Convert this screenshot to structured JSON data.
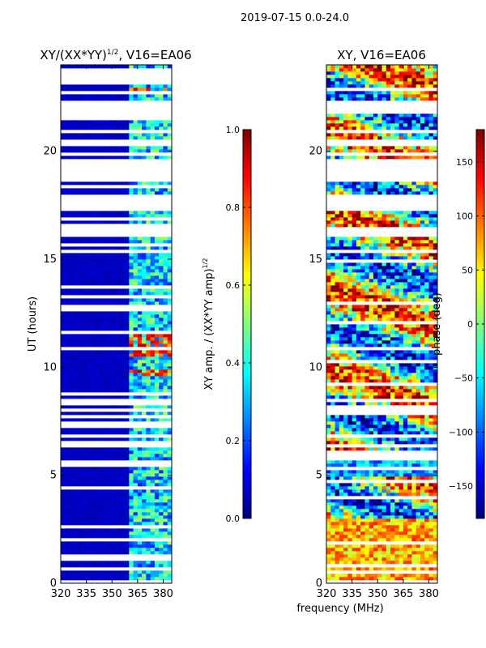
{
  "figure": {
    "suptitle": "2019-07-15 0.0-24.0",
    "xlabel_shared": "frequency (MHz)"
  },
  "colors": {
    "jet_stops": [
      "#00007f",
      "#0000ff",
      "#007fff",
      "#00ffff",
      "#7fff7f",
      "#ffff00",
      "#ff7f00",
      "#ff0000",
      "#7f0000"
    ],
    "background": "#ffffff",
    "gap": "#ffffff"
  },
  "chart_data": [
    {
      "type": "heatmap",
      "title": "XY/(XX*YY)¹ᐟ², V16=EA06",
      "title_main": "XY/(XX*YY)",
      "title_exp": "1/2",
      "title_tail": ", V16=EA06",
      "xlabel": "",
      "ylabel": "UT (hours)",
      "xlim": [
        320,
        385
      ],
      "ylim": [
        0,
        24
      ],
      "xticks": [
        320,
        335,
        350,
        365,
        380
      ],
      "xtick_labels": [
        "320",
        "335",
        "350",
        "365",
        "380"
      ],
      "yticks": [
        0,
        5,
        10,
        15,
        20
      ],
      "ytick_labels": [
        "0",
        "5",
        "10",
        "15",
        "20"
      ],
      "colorbar": {
        "label_main": "XY amp. / (XX*YY amp)",
        "label_exp": "1/2",
        "range": [
          0.0,
          1.0
        ],
        "ticks": [
          0.0,
          0.2,
          0.4,
          0.6,
          0.8,
          1.0
        ],
        "tick_labels": [
          "0.0",
          "0.2",
          "0.4",
          "0.6",
          "0.8",
          "1.0"
        ]
      },
      "gaps_hours": [
        [
          17.2,
          18.0
        ],
        [
          18.6,
          19.6
        ],
        [
          20.3,
          20.6
        ],
        [
          21.8,
          22.3
        ],
        [
          23.1,
          23.3
        ],
        [
          23.6,
          23.9
        ],
        [
          16.0,
          16.4
        ],
        [
          15.3,
          15.5
        ],
        [
          12.6,
          12.9
        ],
        [
          8.2,
          8.5
        ],
        [
          6.3,
          6.6
        ],
        [
          5.5,
          5.7
        ]
      ],
      "value_ranges": {
        "low_band_mhz": [
          320,
          361
        ],
        "low_band_value": 0.05,
        "high_band_mhz": [
          361,
          385
        ],
        "high_band_values": [
          0.15,
          0.55
        ],
        "hot_spots_hours": [
          [
            9.6,
            9.9
          ],
          [
            10.5,
            11.5
          ],
          [
            22.6,
            23.0
          ]
        ]
      }
    },
    {
      "type": "heatmap",
      "title": "XY, V16=EA06",
      "xlabel": "frequency (MHz)",
      "ylabel": "",
      "xlim": [
        320,
        385
      ],
      "ylim": [
        0,
        24
      ],
      "xticks": [
        320,
        335,
        350,
        365,
        380
      ],
      "xtick_labels": [
        "320",
        "335",
        "350",
        "365",
        "380"
      ],
      "yticks": [
        0,
        5,
        10,
        15,
        20
      ],
      "ytick_labels": [
        "0",
        "5",
        "10",
        "15",
        "20"
      ],
      "colorbar": {
        "label": "phase (deg)",
        "range": [
          -180,
          180
        ],
        "ticks": [
          -150,
          -100,
          -50,
          0,
          50,
          100,
          150
        ],
        "tick_labels": [
          "−150",
          "−100",
          "−50",
          "0",
          "50",
          "100",
          "150"
        ]
      },
      "gaps_hours": [
        [
          17.2,
          18.0
        ],
        [
          18.6,
          19.6
        ],
        [
          20.3,
          20.6
        ],
        [
          21.8,
          22.3
        ],
        [
          16.0,
          16.4
        ],
        [
          15.3,
          15.5
        ]
      ],
      "value_ranges": {
        "phase_min_deg": -180,
        "phase_max_deg": 180
      }
    }
  ]
}
